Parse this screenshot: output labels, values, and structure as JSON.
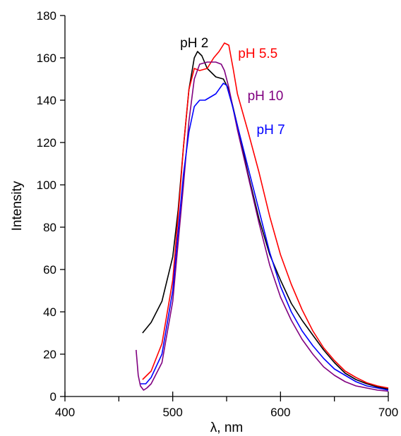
{
  "chart_data": {
    "type": "line",
    "title": "",
    "xlabel": "λ, nm",
    "ylabel": "Intensity",
    "xlim": [
      400,
      700
    ],
    "ylim": [
      0,
      180
    ],
    "xticks": [
      400,
      500,
      600,
      700
    ],
    "yticks": [
      0,
      20,
      40,
      60,
      80,
      100,
      120,
      140,
      160,
      180
    ],
    "grid": false,
    "legend": "none",
    "series": [
      {
        "name": "pH 2",
        "color": "#000000",
        "x": [
          472,
          480,
          490,
          500,
          505,
          510,
          515,
          520,
          523,
          527,
          532,
          540,
          547,
          552,
          560,
          570,
          580,
          590,
          600,
          610,
          620,
          630,
          640,
          650,
          660,
          670,
          680,
          690,
          700
        ],
        "y": [
          30,
          35,
          45,
          66,
          88,
          118,
          145,
          160,
          163,
          161,
          155,
          151,
          150,
          145,
          128,
          105,
          84,
          67,
          55,
          44,
          36,
          29,
          22,
          16,
          11,
          8,
          6,
          4.5,
          3.5
        ]
      },
      {
        "name": "pH 5.5",
        "color": "#ff0000",
        "x": [
          472,
          480,
          490,
          500,
          505,
          510,
          515,
          520,
          525,
          532,
          538,
          543,
          548,
          552,
          556,
          560,
          570,
          580,
          590,
          600,
          610,
          620,
          630,
          640,
          650,
          660,
          670,
          680,
          690,
          700
        ],
        "y": [
          8,
          12,
          25,
          55,
          85,
          118,
          145,
          155,
          154,
          155,
          160,
          163,
          167,
          166,
          155,
          143,
          125,
          106,
          85,
          67,
          53,
          41,
          31,
          23,
          17,
          12,
          9,
          6.5,
          5,
          4
        ]
      },
      {
        "name": "pH 10",
        "color": "#800080",
        "x": [
          466,
          468,
          470,
          473,
          476,
          480,
          490,
          500,
          510,
          515,
          520,
          525,
          532,
          540,
          545,
          548,
          552,
          556,
          560,
          570,
          580,
          590,
          600,
          610,
          620,
          630,
          640,
          650,
          660,
          670,
          680,
          690,
          700
        ],
        "y": [
          22,
          10,
          5,
          3,
          4,
          6,
          16,
          45,
          100,
          130,
          150,
          157,
          158,
          158,
          157,
          154,
          146,
          136,
          126,
          104,
          82,
          62,
          47,
          36,
          27,
          20,
          14,
          10,
          7,
          5,
          4,
          3,
          2.5
        ]
      },
      {
        "name": "pH 7",
        "color": "#0000ff",
        "x": [
          470,
          475,
          480,
          490,
          500,
          505,
          510,
          515,
          520,
          525,
          530,
          540,
          547,
          550,
          555,
          560,
          570,
          580,
          590,
          600,
          610,
          620,
          630,
          640,
          650,
          660,
          670,
          680,
          690,
          700
        ],
        "y": [
          6,
          6,
          9,
          20,
          50,
          78,
          105,
          125,
          137,
          140,
          140,
          143,
          148,
          147,
          138,
          128,
          108,
          88,
          68,
          52,
          40,
          31,
          24,
          18,
          13,
          10,
          7,
          5,
          4,
          3
        ]
      }
    ],
    "annotations": [
      {
        "text": "pH 2",
        "color": "#000000",
        "x": 520,
        "y": 165
      },
      {
        "text": "pH 5.5",
        "color": "#ff0000",
        "x": 579,
        "y": 160
      },
      {
        "text": "pH 10",
        "color": "#800080",
        "x": 586,
        "y": 140
      },
      {
        "text": "pH 7",
        "color": "#0000ff",
        "x": 591,
        "y": 124
      }
    ]
  }
}
